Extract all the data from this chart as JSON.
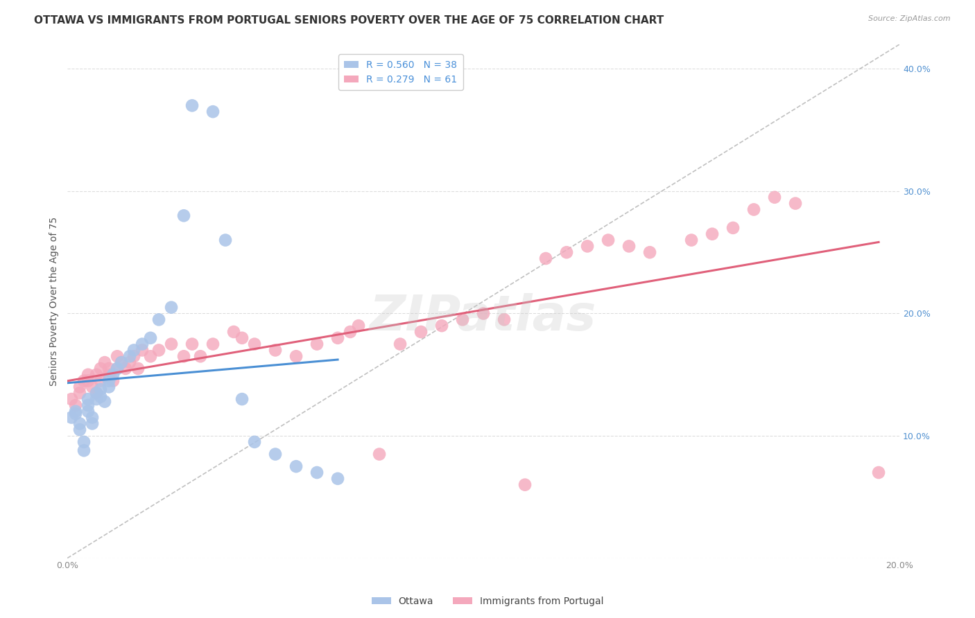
{
  "title": "OTTAWA VS IMMIGRANTS FROM PORTUGAL SENIORS POVERTY OVER THE AGE OF 75 CORRELATION CHART",
  "source": "Source: ZipAtlas.com",
  "ylabel": "Seniors Poverty Over the Age of 75",
  "xlim": [
    0.0,
    0.2
  ],
  "ylim": [
    0.0,
    0.42
  ],
  "ottawa_R": 0.56,
  "ottawa_N": 38,
  "portugal_R": 0.279,
  "portugal_N": 61,
  "ottawa_color": "#aac4e8",
  "portugal_color": "#f4a8bc",
  "ottawa_line_color": "#4a8fd4",
  "portugal_line_color": "#e0607a",
  "ottawa_x": [
    0.001,
    0.002,
    0.002,
    0.003,
    0.003,
    0.004,
    0.004,
    0.005,
    0.005,
    0.005,
    0.006,
    0.006,
    0.007,
    0.007,
    0.008,
    0.008,
    0.009,
    0.01,
    0.01,
    0.011,
    0.012,
    0.013,
    0.015,
    0.016,
    0.018,
    0.02,
    0.022,
    0.025,
    0.028,
    0.03,
    0.035,
    0.038,
    0.042,
    0.045,
    0.05,
    0.055,
    0.06,
    0.065
  ],
  "ottawa_y": [
    0.115,
    0.12,
    0.118,
    0.11,
    0.105,
    0.095,
    0.088,
    0.13,
    0.125,
    0.12,
    0.115,
    0.11,
    0.135,
    0.13,
    0.138,
    0.132,
    0.128,
    0.14,
    0.145,
    0.15,
    0.155,
    0.16,
    0.165,
    0.17,
    0.175,
    0.18,
    0.195,
    0.205,
    0.28,
    0.37,
    0.365,
    0.26,
    0.13,
    0.095,
    0.085,
    0.075,
    0.07,
    0.065
  ],
  "portugal_x": [
    0.001,
    0.002,
    0.003,
    0.003,
    0.004,
    0.005,
    0.005,
    0.006,
    0.007,
    0.007,
    0.008,
    0.008,
    0.009,
    0.01,
    0.01,
    0.011,
    0.012,
    0.012,
    0.013,
    0.014,
    0.015,
    0.016,
    0.017,
    0.018,
    0.02,
    0.022,
    0.025,
    0.028,
    0.03,
    0.032,
    0.035,
    0.04,
    0.042,
    0.045,
    0.05,
    0.055,
    0.06,
    0.065,
    0.068,
    0.07,
    0.075,
    0.08,
    0.085,
    0.09,
    0.095,
    0.1,
    0.105,
    0.11,
    0.115,
    0.12,
    0.125,
    0.13,
    0.135,
    0.14,
    0.15,
    0.155,
    0.16,
    0.165,
    0.17,
    0.175,
    0.195
  ],
  "portugal_y": [
    0.13,
    0.125,
    0.14,
    0.135,
    0.145,
    0.15,
    0.145,
    0.14,
    0.135,
    0.15,
    0.145,
    0.155,
    0.16,
    0.155,
    0.15,
    0.145,
    0.155,
    0.165,
    0.16,
    0.155,
    0.16,
    0.165,
    0.155,
    0.17,
    0.165,
    0.17,
    0.175,
    0.165,
    0.175,
    0.165,
    0.175,
    0.185,
    0.18,
    0.175,
    0.17,
    0.165,
    0.175,
    0.18,
    0.185,
    0.19,
    0.085,
    0.175,
    0.185,
    0.19,
    0.195,
    0.2,
    0.195,
    0.06,
    0.245,
    0.25,
    0.255,
    0.26,
    0.255,
    0.25,
    0.26,
    0.265,
    0.27,
    0.285,
    0.295,
    0.29,
    0.07
  ],
  "background_color": "#ffffff",
  "grid_color": "#dddddd",
  "title_fontsize": 11,
  "label_fontsize": 10,
  "tick_fontsize": 9,
  "legend_fontsize": 10,
  "watermark_text": "ZIPatlas",
  "watermark_color": "#c8c8c8",
  "watermark_fontsize": 52,
  "watermark_alpha": 0.3
}
